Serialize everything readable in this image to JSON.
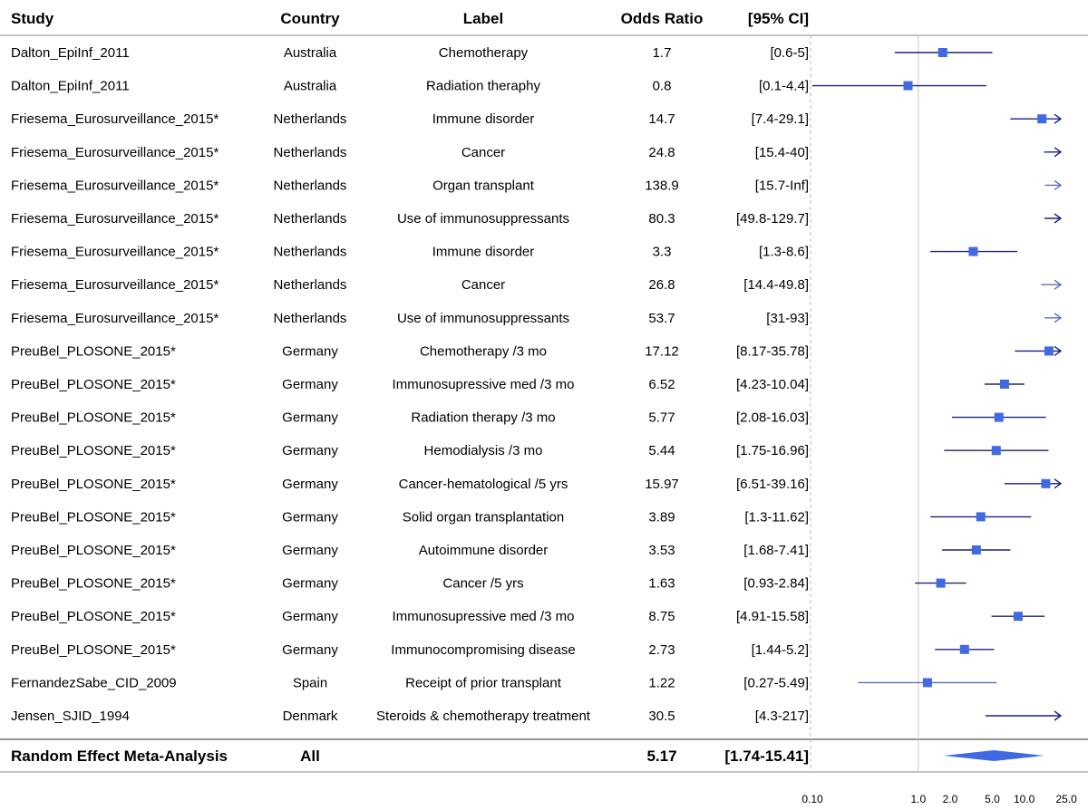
{
  "headers": {
    "study": "Study",
    "country": "Country",
    "label": "Label",
    "or": "Odds Ratio",
    "ci": "[95% CI]"
  },
  "colors": {
    "marker": "#4169e1",
    "line": "#1a237e",
    "light_line": "#5c6bc0",
    "ref_line": "#c8c8c8",
    "dashed_ref": "#b0bde8",
    "rule": "#888888"
  },
  "chart_data": {
    "type": "forest",
    "x_scale": "log",
    "x_ticks": [
      0.1,
      1.0,
      2.0,
      5.0,
      10.0,
      25.0
    ],
    "x_tick_labels": [
      "0.10",
      "1.0",
      "2.0",
      "5.0",
      "10.0",
      "25.0"
    ],
    "reference_line": 1.0,
    "rows": [
      {
        "study": "Dalton_EpiInf_2011",
        "country": "Australia",
        "label": "Chemotherapy",
        "or_text": "1.7",
        "ci_text": "[0.6-5]",
        "or": 1.7,
        "lo": 0.6,
        "hi": 5
      },
      {
        "study": "Dalton_EpiInf_2011",
        "country": "Australia",
        "label": "Radiation theraphy",
        "or_text": "0.8",
        "ci_text": "[0.1-4.4]",
        "or": 0.8,
        "lo": 0.1,
        "hi": 4.4
      },
      {
        "study": "Friesema_Eurosurveillance_2015*",
        "country": "Netherlands",
        "label": "Immune disorder",
        "or_text": "14.7",
        "ci_text": "[7.4-29.1]",
        "or": 14.7,
        "lo": 7.4,
        "hi": 29.1
      },
      {
        "study": "Friesema_Eurosurveillance_2015*",
        "country": "Netherlands",
        "label": "Cancer",
        "or_text": "24.8",
        "ci_text": "[15.4-40]",
        "or": 24.8,
        "lo": 15.4,
        "hi": 40
      },
      {
        "study": "Friesema_Eurosurveillance_2015*",
        "country": "Netherlands",
        "label": "Organ transplant",
        "or_text": "138.9",
        "ci_text": "[15.7-Inf]",
        "or": 138.9,
        "lo": 15.7,
        "hi": null
      },
      {
        "study": "Friesema_Eurosurveillance_2015*",
        "country": "Netherlands",
        "label": "Use of immunosuppressants",
        "or_text": "80.3",
        "ci_text": "[49.8-129.7]",
        "or": 80.3,
        "lo": 49.8,
        "hi": 129.7
      },
      {
        "study": "Friesema_Eurosurveillance_2015*",
        "country": "Netherlands",
        "label": "Immune disorder",
        "or_text": "3.3",
        "ci_text": "[1.3-8.6]",
        "or": 3.3,
        "lo": 1.3,
        "hi": 8.6
      },
      {
        "study": "Friesema_Eurosurveillance_2015*",
        "country": "Netherlands",
        "label": "Cancer",
        "or_text": "26.8",
        "ci_text": "[14.4-49.8]",
        "or": 26.8,
        "lo": 14.4,
        "hi": 49.8
      },
      {
        "study": "Friesema_Eurosurveillance_2015*",
        "country": "Netherlands",
        "label": "Use of immunosuppressants",
        "or_text": "53.7",
        "ci_text": "[31-93]",
        "or": 53.7,
        "lo": 31,
        "hi": 93
      },
      {
        "study": "PreuBel_PLOSONE_2015*",
        "country": "Germany",
        "label": "Chemotherapy /3 mo",
        "or_text": "17.12",
        "ci_text": "[8.17-35.78]",
        "or": 17.12,
        "lo": 8.17,
        "hi": 35.78
      },
      {
        "study": "PreuBel_PLOSONE_2015*",
        "country": "Germany",
        "label": "Immunosupressive med /3 mo",
        "or_text": "6.52",
        "ci_text": "[4.23-10.04]",
        "or": 6.52,
        "lo": 4.23,
        "hi": 10.04
      },
      {
        "study": "PreuBel_PLOSONE_2015*",
        "country": "Germany",
        "label": "Radiation therapy /3 mo",
        "or_text": "5.77",
        "ci_text": "[2.08-16.03]",
        "or": 5.77,
        "lo": 2.08,
        "hi": 16.03
      },
      {
        "study": "PreuBel_PLOSONE_2015*",
        "country": "Germany",
        "label": "Hemodialysis /3 mo",
        "or_text": "5.44",
        "ci_text": "[1.75-16.96]",
        "or": 5.44,
        "lo": 1.75,
        "hi": 16.96
      },
      {
        "study": "PreuBel_PLOSONE_2015*",
        "country": "Germany",
        "label": "Cancer-hematological /5 yrs",
        "or_text": "15.97",
        "ci_text": "[6.51-39.16]",
        "or": 15.97,
        "lo": 6.51,
        "hi": 39.16
      },
      {
        "study": "PreuBel_PLOSONE_2015*",
        "country": "Germany",
        "label": "Solid organ transplantation",
        "or_text": "3.89",
        "ci_text": "[1.3-11.62]",
        "or": 3.89,
        "lo": 1.3,
        "hi": 11.62
      },
      {
        "study": "PreuBel_PLOSONE_2015*",
        "country": "Germany",
        "label": "Autoimmune disorder",
        "or_text": "3.53",
        "ci_text": "[1.68-7.41]",
        "or": 3.53,
        "lo": 1.68,
        "hi": 7.41
      },
      {
        "study": "PreuBel_PLOSONE_2015*",
        "country": "Germany",
        "label": "Cancer /5 yrs",
        "or_text": "1.63",
        "ci_text": "[0.93-2.84]",
        "or": 1.63,
        "lo": 0.93,
        "hi": 2.84
      },
      {
        "study": "PreuBel_PLOSONE_2015*",
        "country": "Germany",
        "label": "Immunosupressive med /3 mo",
        "or_text": "8.75",
        "ci_text": "[4.91-15.58]",
        "or": 8.75,
        "lo": 4.91,
        "hi": 15.58
      },
      {
        "study": "PreuBel_PLOSONE_2015*",
        "country": "Germany",
        "label": "Immunocompromising disease",
        "or_text": "2.73",
        "ci_text": "[1.44-5.2]",
        "or": 2.73,
        "lo": 1.44,
        "hi": 5.2
      },
      {
        "study": "FernandezSabe_CID_2009",
        "country": "Spain",
        "label": "Receipt of prior transplant",
        "or_text": "1.22",
        "ci_text": "[0.27-5.49]",
        "or": 1.22,
        "lo": 0.27,
        "hi": 5.49
      },
      {
        "study": "Jensen_SJID_1994",
        "country": "Denmark",
        "label": "Steroids & chemotherapy treatment",
        "or_text": "30.5",
        "ci_text": "[4.3-217]",
        "or": 30.5,
        "lo": 4.3,
        "hi": 217
      }
    ],
    "summary": {
      "study": "Random Effect Meta-Analysis",
      "country": "All",
      "or_text": "5.17",
      "ci_text": "[1.74-15.41]",
      "or": 5.17,
      "lo": 1.74,
      "hi": 15.41
    }
  }
}
